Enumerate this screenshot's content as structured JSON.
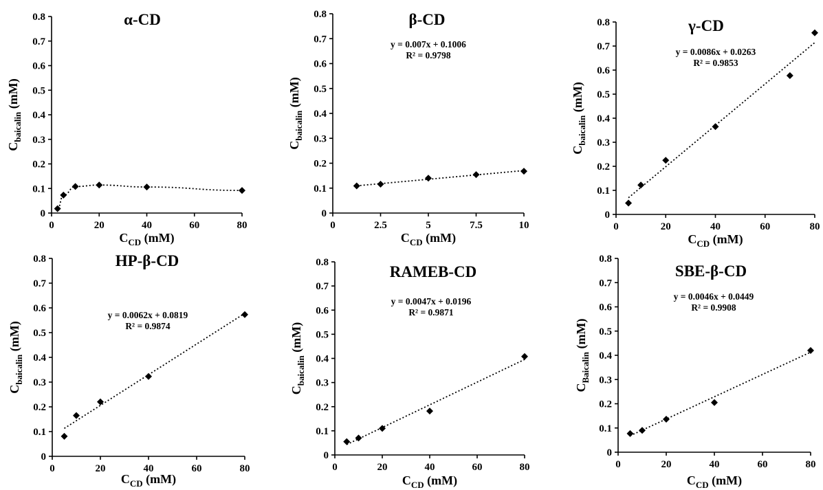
{
  "chart_data": [
    {
      "type": "scatter",
      "title": "α-CD",
      "xlabel": {
        "main": "C",
        "sub": "CD",
        "unit": " (mM)"
      },
      "ylabel": {
        "main": "C",
        "sub": "baicalin",
        "unit": " (mM)"
      },
      "xlim": [
        0,
        80
      ],
      "xticks": [
        "0",
        "20",
        "40",
        "60",
        "80"
      ],
      "ylim": [
        0,
        0.8
      ],
      "yticks": [
        "0",
        "0.1",
        "0.2",
        "0.3",
        "0.4",
        "0.5",
        "0.6",
        "0.7",
        "0.8"
      ],
      "x": [
        2.5,
        5,
        10,
        20,
        40,
        80
      ],
      "y": [
        0.018,
        0.073,
        0.108,
        0.114,
        0.106,
        0.092
      ],
      "connector": "dotted-curve"
    },
    {
      "type": "scatter",
      "title": "β-CD",
      "equation": "y = 0.007x + 0.1006",
      "r2": "R² = 0.9798",
      "xlabel": {
        "main": "C",
        "sub": "CD",
        "unit": " (mM)"
      },
      "ylabel": {
        "main": "C",
        "sub": "baicalin",
        "unit": " (mM)"
      },
      "xlim": [
        0,
        10
      ],
      "xticks": [
        "0",
        "2.5",
        "5",
        "7.5",
        "10"
      ],
      "ylim": [
        0,
        0.8
      ],
      "yticks": [
        "0",
        "0.1",
        "0.2",
        "0.3",
        "0.4",
        "0.5",
        "0.6",
        "0.7",
        "0.8"
      ],
      "x": [
        1.25,
        2.5,
        5,
        7.5,
        10
      ],
      "y": [
        0.109,
        0.116,
        0.14,
        0.154,
        0.168
      ],
      "trendline": {
        "slope": 0.007,
        "intercept": 0.1006
      }
    },
    {
      "type": "scatter",
      "title": "γ-CD",
      "equation": "y = 0.0086x + 0.0263",
      "r2": "R² = 0.9853",
      "xlabel": {
        "main": "C",
        "sub": "CD",
        "unit": " (mM)"
      },
      "ylabel": {
        "main": "C",
        "sub": "baicalin",
        "unit": " (mM)"
      },
      "xlim": [
        0,
        80
      ],
      "xticks": [
        "0",
        "20",
        "40",
        "60",
        "80"
      ],
      "ylim": [
        0,
        0.8
      ],
      "yticks": [
        "0",
        "0.1",
        "0.2",
        "0.3",
        "0.4",
        "0.5",
        "0.6",
        "0.7",
        "0.8"
      ],
      "x": [
        5,
        10,
        20,
        40,
        70,
        80
      ],
      "y": [
        0.047,
        0.122,
        0.225,
        0.365,
        0.577,
        0.755
      ],
      "trendline": {
        "slope": 0.0086,
        "intercept": 0.0263
      }
    },
    {
      "type": "scatter",
      "title": "HP-β-CD",
      "equation": "y = 0.0062x + 0.0819",
      "r2": "R² = 0.9874",
      "xlabel": {
        "main": "C",
        "sub": "CD",
        "unit": " (mM)"
      },
      "ylabel": {
        "main": "C",
        "sub": "baicalin",
        "unit": " (mM)"
      },
      "xlim": [
        0,
        80
      ],
      "xticks": [
        "0",
        "20",
        "40",
        "60",
        "80"
      ],
      "ylim": [
        0,
        0.8
      ],
      "yticks": [
        "0",
        "0.1",
        "0.2",
        "0.3",
        "0.4",
        "0.5",
        "0.6",
        "0.7",
        "0.8"
      ],
      "x": [
        5,
        10,
        20,
        40,
        80
      ],
      "y": [
        0.081,
        0.165,
        0.22,
        0.323,
        0.573
      ],
      "trendline": {
        "slope": 0.0062,
        "intercept": 0.0819
      }
    },
    {
      "type": "scatter",
      "title": "RAMEB-CD",
      "equation": "y = 0.0047x + 0.0196",
      "r2": "R² = 0.9871",
      "xlabel": {
        "main": "C",
        "sub": "CD",
        "unit": " (mM)"
      },
      "ylabel": {
        "main": "C",
        "sub": "baicalin",
        "unit": " (mM)"
      },
      "xlim": [
        0,
        80
      ],
      "xticks": [
        "0",
        "20",
        "40",
        "60",
        "80"
      ],
      "ylim": [
        0,
        0.8
      ],
      "yticks": [
        "0",
        "0.1",
        "0.2",
        "0.3",
        "0.4",
        "0.5",
        "0.6",
        "0.7",
        "0.8"
      ],
      "x": [
        5,
        10,
        20,
        40,
        80
      ],
      "y": [
        0.055,
        0.07,
        0.11,
        0.182,
        0.408
      ],
      "trendline": {
        "slope": 0.0047,
        "intercept": 0.0196
      }
    },
    {
      "type": "scatter",
      "title": "SBE-β-CD",
      "equation": "y = 0.0046x + 0.0449",
      "r2": "R² = 0.9908",
      "xlabel": {
        "main": "C",
        "sub": "CD",
        "unit": " (mM)"
      },
      "ylabel": {
        "main": "C",
        "sub": "Baicalin",
        "unit": " (mM)"
      },
      "xlim": [
        0,
        80
      ],
      "xticks": [
        "0",
        "20",
        "40",
        "60",
        "80"
      ],
      "ylim": [
        0,
        0.8
      ],
      "yticks": [
        "0",
        "0.1",
        "0.2",
        "0.3",
        "0.4",
        "0.5",
        "0.6",
        "0.7",
        "0.8"
      ],
      "x": [
        5,
        10,
        20,
        40,
        80
      ],
      "y": [
        0.077,
        0.09,
        0.136,
        0.205,
        0.42
      ],
      "trendline": {
        "slope": 0.0046,
        "intercept": 0.0449
      }
    }
  ]
}
